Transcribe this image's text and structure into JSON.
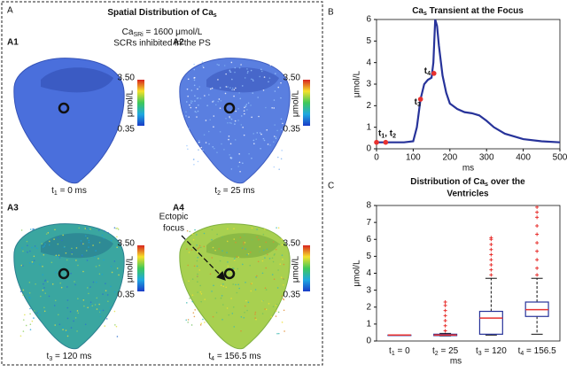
{
  "panel_a": {
    "label": "A",
    "title": "Spatial Distribution of Ca",
    "title_sub": "s",
    "condition": {
      "prefix": "Ca",
      "sub": "SRi",
      "rest": " = 1600 μmol/L",
      "line2": "SCRs inhibited in the PS"
    },
    "colorbar": {
      "max": "3.50",
      "min": "0.35",
      "unit": "μmol/L"
    },
    "panels": [
      {
        "label": "A1",
        "t": "t",
        "sub": "1",
        "rest": " = 0 ms"
      },
      {
        "label": "A2",
        "t": "t",
        "sub": "2",
        "rest": " = 25 ms"
      },
      {
        "label": "A3",
        "t": "t",
        "sub": "3",
        "rest": " = 120 ms"
      },
      {
        "label": "A4",
        "t": "t",
        "sub": "4",
        "rest": " = 156.5 ms"
      }
    ],
    "annotation": [
      "Ectopic",
      "focus"
    ]
  },
  "chart_data": [
    {
      "type": "line",
      "label": "B",
      "title": "Ca",
      "title_sub": "s",
      "title_rest": " Transient at the Focus",
      "x_label": "ms",
      "y_label": "μmol/L",
      "xlim": [
        0,
        500
      ],
      "xticks": [
        0,
        100,
        200,
        300,
        400,
        500
      ],
      "ylim": [
        0,
        6
      ],
      "yticks": [
        0,
        1,
        2,
        3,
        4,
        5,
        6
      ],
      "x": [
        0,
        25,
        50,
        75,
        100,
        110,
        120,
        130,
        140,
        150,
        155,
        160,
        165,
        170,
        180,
        190,
        200,
        220,
        240,
        260,
        280,
        300,
        320,
        350,
        400,
        450,
        500
      ],
      "series": [
        {
          "color": "#27339a",
          "values": [
            0.3,
            0.3,
            0.3,
            0.3,
            0.35,
            1.0,
            2.3,
            3.0,
            3.2,
            3.3,
            4.0,
            6.0,
            5.7,
            4.8,
            3.4,
            2.6,
            2.1,
            1.85,
            1.7,
            1.65,
            1.55,
            1.3,
            1.0,
            0.7,
            0.45,
            0.35,
            0.3
          ]
        }
      ],
      "points": {
        "color": "#e8312f",
        "x": [
          0,
          25,
          120,
          156.5
        ],
        "y": [
          0.3,
          0.3,
          2.3,
          3.5
        ]
      },
      "point_labels": [
        {
          "text": "t",
          "sub": "1",
          "text2": ", t",
          "sub2": "2"
        },
        {
          "text": "t",
          "sub": "3"
        },
        {
          "text": "t",
          "sub": "4"
        }
      ]
    },
    {
      "type": "box",
      "label": "C",
      "title": "Distribution of Ca",
      "title_sub": "s",
      "title_rest": " over the",
      "title_line2": "Ventricles",
      "x_label": "ms",
      "y_label": "μmol/L",
      "ylim": [
        0,
        8
      ],
      "yticks": [
        0,
        1,
        2,
        3,
        4,
        5,
        6,
        7,
        8
      ],
      "box_color": "#27339a",
      "median_color": "#e8312f",
      "outlier_color": "#e8312f",
      "categories": [
        {
          "t": "t",
          "sub": "1",
          "rest": " = 0"
        },
        {
          "t": "t",
          "sub": "2",
          "rest": " = 25"
        },
        {
          "t": "t",
          "sub": "3",
          "rest": " = 120"
        },
        {
          "t": "t",
          "sub": "4",
          "rest": " = 156.5"
        }
      ],
      "min": [
        0.35,
        0.3,
        0.35,
        0.4
      ],
      "q1": [
        0.35,
        0.32,
        0.4,
        1.45
      ],
      "median": [
        0.35,
        0.35,
        1.35,
        1.85
      ],
      "q3": [
        0.35,
        0.4,
        1.75,
        2.3
      ],
      "max": [
        0.35,
        0.45,
        3.7,
        3.7
      ],
      "outliers": [
        [],
        [
          0.6,
          0.9,
          1.2,
          1.5,
          1.8,
          2.1,
          2.3
        ],
        [
          3.9,
          4.2,
          4.5,
          4.8,
          5.1,
          5.4,
          5.7,
          6.0,
          6.1
        ],
        [
          3.9,
          4.3,
          4.8,
          5.3,
          5.8,
          6.3,
          6.8,
          7.3,
          7.6,
          7.9
        ]
      ]
    }
  ]
}
